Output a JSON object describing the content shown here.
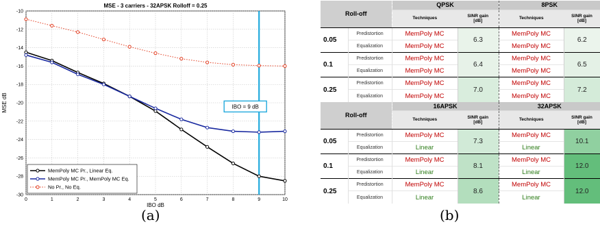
{
  "chart_data": {
    "type": "line",
    "title": "MSE - 3 carriers - 32APSK Rolloff = 0.25",
    "xlabel": "IBO dB",
    "ylabel": "MSE dB",
    "xlim": [
      0,
      10
    ],
    "ylim": [
      -30,
      -10
    ],
    "xticks": [
      0,
      1,
      2,
      3,
      4,
      5,
      6,
      7,
      8,
      9,
      10
    ],
    "yticks": [
      -10,
      -12,
      -14,
      -16,
      -18,
      -20,
      -22,
      -24,
      -26,
      -28,
      -30
    ],
    "grid": true,
    "legend_position": "bottom-left",
    "x": [
      0,
      1,
      2,
      3,
      4,
      5,
      6,
      7,
      8,
      9,
      10
    ],
    "series": [
      {
        "name": "MemPoly MC Pr., Linear Eq.",
        "color": "#000000",
        "style": "solid",
        "values": [
          -14.5,
          -15.4,
          -16.7,
          -17.9,
          -19.3,
          -20.9,
          -22.9,
          -24.8,
          -26.6,
          -28.0,
          -28.5
        ]
      },
      {
        "name": "MemPoly MC Pr., MemPoly MC Eq.",
        "color": "#1a2aa0",
        "style": "solid",
        "values": [
          -14.8,
          -15.6,
          -16.9,
          -18.0,
          -19.3,
          -20.6,
          -21.8,
          -22.7,
          -23.1,
          -23.2,
          -23.1
        ]
      },
      {
        "name": "No Pr., No Eq.",
        "color": "#e23b1e",
        "style": "dotted",
        "values": [
          -10.9,
          -11.6,
          -12.3,
          -13.1,
          -13.9,
          -14.6,
          -15.2,
          -15.6,
          -15.85,
          -15.95,
          -16.0
        ]
      }
    ],
    "vline": {
      "x": 9,
      "color": "#22aadd"
    },
    "annotation": {
      "text": "IBO = 9 dB",
      "x": 9,
      "y": -20.4
    }
  },
  "captions": {
    "a": "(a)",
    "b": "(b)"
  },
  "table": {
    "roll_off_label": "Roll-off",
    "techniques_label": "Techniques",
    "gain_label_line1": "SINR gain",
    "gain_label_line2": "[dB]",
    "row_kinds": [
      "Predistortion",
      "Equalization"
    ],
    "blocks": [
      {
        "mods": [
          "QPSK",
          "8PSK"
        ],
        "rows": [
          {
            "rolloff": "0.05",
            "m1": {
              "pred": "MemPoly MC",
              "eq": "MemPoly MC",
              "gain": "6.3"
            },
            "m2": {
              "pred": "MemPoly MC",
              "eq": "MemPoly MC",
              "gain": "6.2"
            }
          },
          {
            "rolloff": "0.1",
            "m1": {
              "pred": "MemPoly MC",
              "eq": "MemPoly MC",
              "gain": "6.4"
            },
            "m2": {
              "pred": "MemPoly MC",
              "eq": "MemPoly MC",
              "gain": "6.5"
            }
          },
          {
            "rolloff": "0.25",
            "m1": {
              "pred": "MemPoly MC",
              "eq": "MemPoly MC",
              "gain": "7.0"
            },
            "m2": {
              "pred": "MemPoly MC",
              "eq": "MemPoly MC",
              "gain": "7.2"
            }
          }
        ]
      },
      {
        "mods": [
          "16APSK",
          "32APSK"
        ],
        "rows": [
          {
            "rolloff": "0.05",
            "m1": {
              "pred": "MemPoly MC",
              "eq": "Linear",
              "gain": "7.3"
            },
            "m2": {
              "pred": "MemPoly MC",
              "eq": "Linear",
              "gain": "10.1"
            }
          },
          {
            "rolloff": "0.1",
            "m1": {
              "pred": "MemPoly MC",
              "eq": "Linear",
              "gain": "8.1"
            },
            "m2": {
              "pred": "MemPoly MC",
              "eq": "Linear",
              "gain": "12.0"
            }
          },
          {
            "rolloff": "0.25",
            "m1": {
              "pred": "MemPoly MC",
              "eq": "Linear",
              "gain": "8.6"
            },
            "m2": {
              "pred": "MemPoly MC",
              "eq": "Linear",
              "gain": "12.0"
            }
          }
        ]
      }
    ],
    "colors": {
      "memPoly": "#c00000",
      "linear": "#2e7d1a"
    }
  }
}
